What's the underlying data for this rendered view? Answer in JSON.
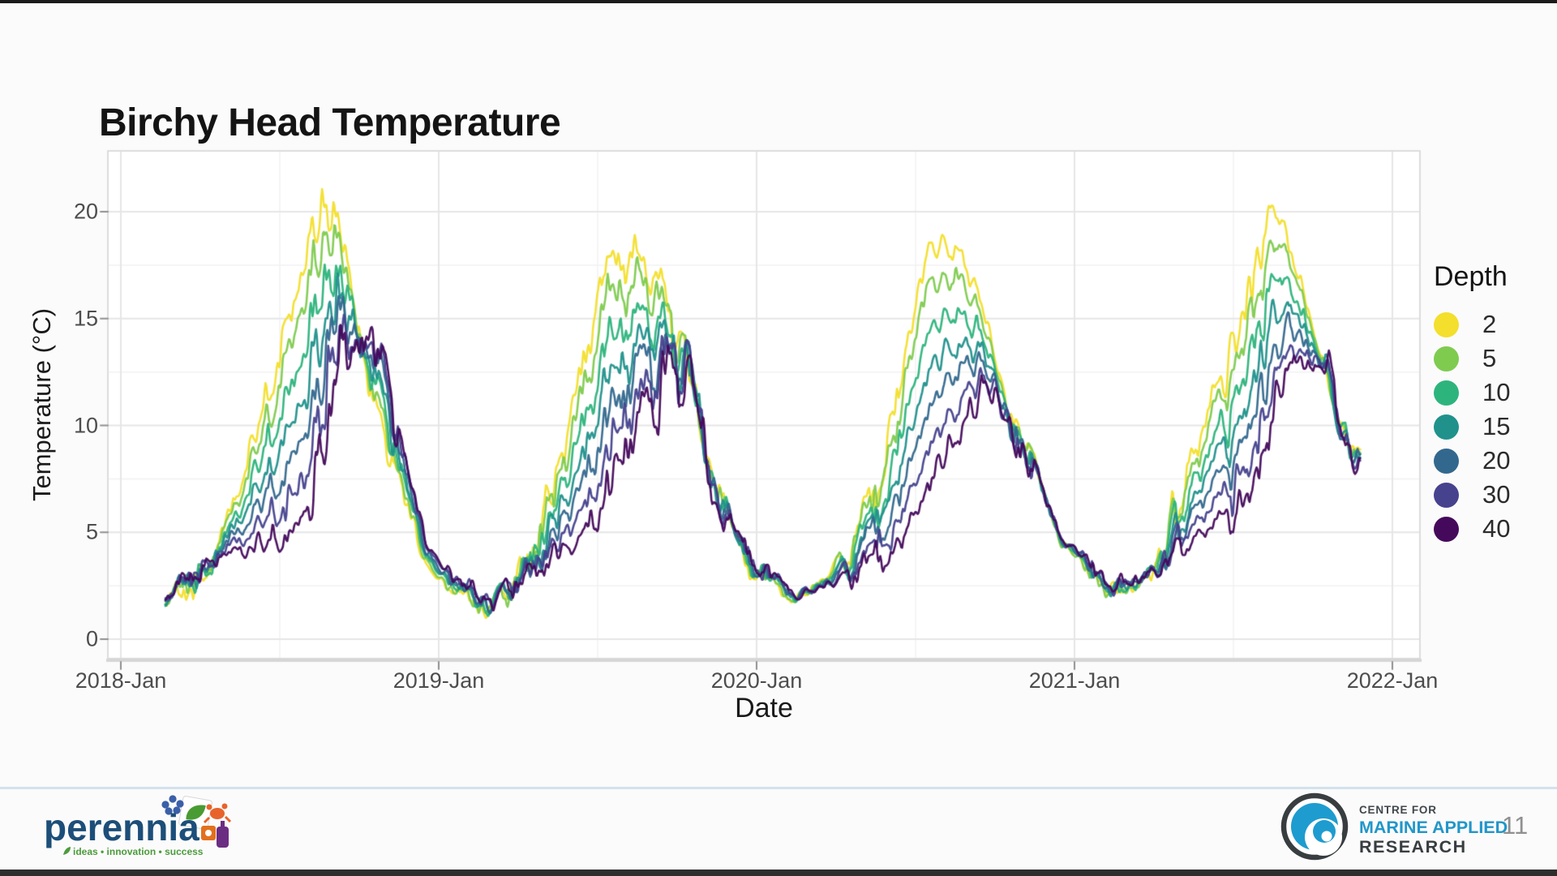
{
  "slide": {
    "title": "Birchy Head Temperature",
    "page_number": "11"
  },
  "footer": {
    "perennia": {
      "name": "perennia",
      "tagline": "ideas • innovation • success"
    },
    "cmar": {
      "line1": "CENTRE FOR",
      "line2": "MARINE APPLIED",
      "line3": "RESEARCH"
    }
  },
  "chart_data": {
    "type": "line",
    "title": "Birchy Head Temperature",
    "xlabel": "Date",
    "ylabel": "Temperature (°C)",
    "legend_title": "Depth",
    "legend_position": "right",
    "grid": true,
    "x_ticks": [
      "2018-Jan",
      "2019-Jan",
      "2020-Jan",
      "2021-Jan",
      "2022-Jan"
    ],
    "y_ticks": [
      "0",
      "5",
      "10",
      "15",
      "20"
    ],
    "ylim": [
      -0.9,
      22.7
    ],
    "x_range_years": [
      2018.0,
      2022.0
    ],
    "data_start": "2018-Feb",
    "data_end": "2021-Nov",
    "monthly_start": "2018-01",
    "monthly_step": "1 month (48 values, null = no data)",
    "series": [
      {
        "name": "2",
        "depth_m": 2,
        "color": "#F3DF2C",
        "mix": 0.0,
        "monthly_mean": [
          null,
          1.8,
          2.5,
          3.8,
          7.5,
          11.5,
          16.5,
          19.5,
          17.5,
          11.0,
          7.0,
          3.5,
          2.0,
          1.2,
          1.8,
          4.0,
          8.0,
          13.0,
          17.5,
          19.0,
          16.0,
          11.5,
          7.5,
          4.0,
          2.5,
          2.0,
          2.8,
          4.5,
          8.5,
          13.5,
          18.0,
          18.5,
          15.5,
          11.0,
          8.0,
          4.5,
          3.2,
          2.2,
          2.5,
          4.2,
          8.0,
          12.5,
          16.5,
          19.5,
          17.0,
          12.0,
          8.5,
          null
        ]
      },
      {
        "name": "5",
        "depth_m": 5,
        "color": "#7FCB4F",
        "mix": 0.15,
        "monthly_mean": [
          null,
          1.9,
          2.6,
          3.8,
          7.0,
          10.5,
          14.9,
          17.8,
          16.7,
          11.5,
          7.3,
          3.7,
          2.1,
          1.2,
          1.8,
          3.9,
          7.4,
          11.8,
          15.9,
          17.9,
          15.5,
          11.4,
          7.4,
          4.1,
          2.6,
          2.0,
          2.8,
          4.3,
          7.9,
          12.3,
          16.4,
          17.2,
          14.9,
          10.9,
          7.9,
          4.5,
          3.2,
          2.2,
          2.5,
          4.1,
          7.5,
          11.5,
          15.2,
          18.1,
          16.4,
          12.1,
          8.4,
          null
        ]
      },
      {
        "name": "10",
        "depth_m": 10,
        "color": "#2DB47C",
        "mix": 0.35,
        "monthly_mean": [
          null,
          1.9,
          2.7,
          3.8,
          6.3,
          9.2,
          12.7,
          15.5,
          15.6,
          12.2,
          7.7,
          3.9,
          2.3,
          1.3,
          1.9,
          3.7,
          6.6,
          10.2,
          13.7,
          16.4,
          14.8,
          11.3,
          7.3,
          4.2,
          2.7,
          2.1,
          2.7,
          4.0,
          7.1,
          10.7,
          14.2,
          15.4,
          14.1,
          10.8,
          7.8,
          4.6,
          3.3,
          2.3,
          2.6,
          4.0,
          6.8,
          10.1,
          13.4,
          16.2,
          15.6,
          12.2,
          8.3,
          null
        ]
      },
      {
        "name": "15",
        "depth_m": 15,
        "color": "#21918C",
        "mix": 0.52,
        "monthly_mean": [
          null,
          2.0,
          2.8,
          3.8,
          5.8,
          8.0,
          10.8,
          13.5,
          14.6,
          12.8,
          8.0,
          4.0,
          2.4,
          1.4,
          1.9,
          3.5,
          5.9,
          8.8,
          11.8,
          15.1,
          14.2,
          11.2,
          7.2,
          4.3,
          2.8,
          2.1,
          2.6,
          3.8,
          6.4,
          9.3,
          12.3,
          13.8,
          13.4,
          10.7,
          7.7,
          4.7,
          3.4,
          2.4,
          2.7,
          3.8,
          6.2,
          8.9,
          11.8,
          14.6,
          14.9,
          12.3,
          8.2,
          null
        ]
      },
      {
        "name": "20",
        "depth_m": 20,
        "color": "#33688E",
        "mix": 0.68,
        "monthly_mean": [
          null,
          2.1,
          2.8,
          3.8,
          5.3,
          6.9,
          9.0,
          11.7,
          13.8,
          13.4,
          8.4,
          4.2,
          2.5,
          1.4,
          1.9,
          3.3,
          5.3,
          7.6,
          10.0,
          13.9,
          13.6,
          11.2,
          7.2,
          4.3,
          2.8,
          2.1,
          2.6,
          3.6,
          5.8,
          8.1,
          10.5,
          12.4,
          12.8,
          10.7,
          7.7,
          4.7,
          3.4,
          2.4,
          2.7,
          3.7,
          5.6,
          7.7,
          10.4,
          13.0,
          14.3,
          12.3,
          8.2,
          null
        ]
      },
      {
        "name": "30",
        "depth_m": 30,
        "color": "#46428E",
        "mix": 0.85,
        "monthly_mean": [
          null,
          2.1,
          2.9,
          3.8,
          4.7,
          5.8,
          7.2,
          9.7,
          12.8,
          14.0,
          8.7,
          4.4,
          2.7,
          1.5,
          2.0,
          3.2,
          4.6,
          6.2,
          8.2,
          12.6,
          13.0,
          11.1,
          7.1,
          4.4,
          2.9,
          2.2,
          2.5,
          3.4,
          5.1,
          6.7,
          8.7,
          10.9,
          12.1,
          10.6,
          7.6,
          4.8,
          3.5,
          2.5,
          2.8,
          3.6,
          5.0,
          6.6,
          8.9,
          11.4,
          13.6,
          12.4,
          8.1,
          null
        ]
      },
      {
        "name": "40",
        "depth_m": 40,
        "color": "#45095C",
        "mix": 1.0,
        "monthly_mean": [
          null,
          2.2,
          3.0,
          3.8,
          4.2,
          4.8,
          5.5,
          8.0,
          12.0,
          14.5,
          9.0,
          4.5,
          2.8,
          1.5,
          2.0,
          3.0,
          4.0,
          5.0,
          6.5,
          11.5,
          12.5,
          11.0,
          7.0,
          4.5,
          3.0,
          2.2,
          2.5,
          3.2,
          4.5,
          5.5,
          7.0,
          9.5,
          11.5,
          10.5,
          7.5,
          4.8,
          3.5,
          2.5,
          2.8,
          3.5,
          4.5,
          5.5,
          7.5,
          10.0,
          13.0,
          12.5,
          8.0,
          null
        ]
      }
    ]
  }
}
